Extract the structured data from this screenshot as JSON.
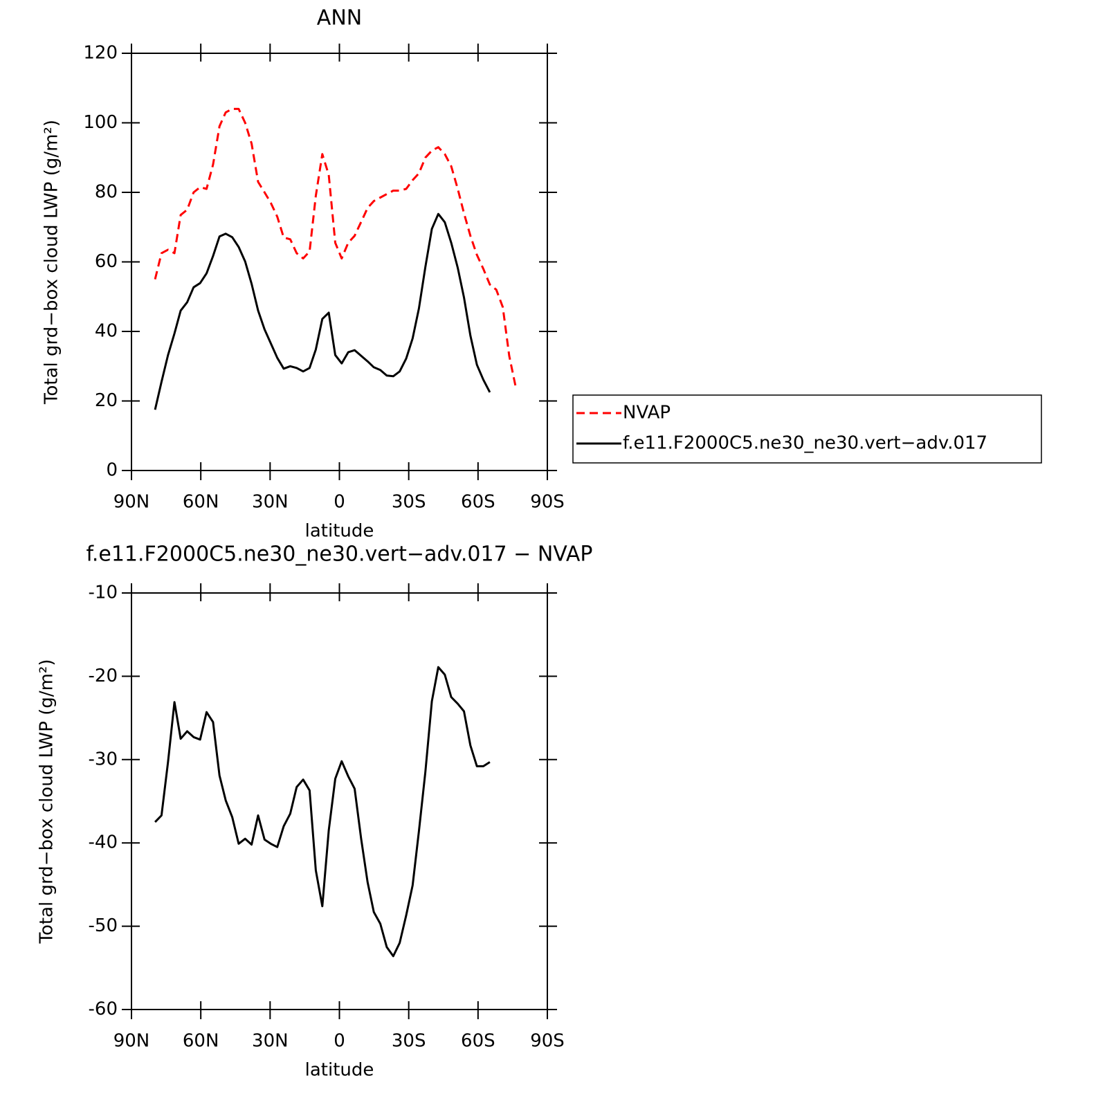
{
  "chart_data": [
    {
      "type": "line",
      "title": "ANN",
      "xlabel": "latitude",
      "ylabel": "Total grd−box cloud LWP (g/m²)",
      "x": [
        79.8,
        77.0,
        74.2,
        71.4,
        68.7,
        65.9,
        63.1,
        60.3,
        57.5,
        54.7,
        51.9,
        49.2,
        46.4,
        43.6,
        40.8,
        38.0,
        35.2,
        32.4,
        29.7,
        26.9,
        24.1,
        21.3,
        18.5,
        15.7,
        12.9,
        10.2,
        7.4,
        4.6,
        1.8,
        -1.0,
        -3.8,
        -6.6,
        -9.4,
        -12.2,
        -14.9,
        -17.7,
        -20.5,
        -23.3,
        -26.1,
        -28.9,
        -31.7,
        -34.4,
        -37.2,
        -40.0,
        -42.8,
        -45.6,
        -48.4,
        -51.2,
        -53.9,
        -56.7,
        -59.5,
        -62.3,
        -65.1,
        -67.9,
        -70.7,
        -73.5,
        -76.3
      ],
      "series": [
        {
          "name": "NVAP",
          "color": "#ff0000",
          "linestyle": "dashed",
          "values": [
            55,
            62.5,
            63.5,
            62.5,
            73.5,
            75,
            80,
            81.5,
            81,
            88,
            99,
            103,
            104,
            104,
            100,
            94,
            83,
            80,
            77,
            73,
            67,
            66.5,
            62.5,
            61,
            63,
            79,
            91,
            85,
            65.5,
            61,
            65.5,
            67.5,
            71.5,
            75.5,
            77.5,
            78.5,
            79.5,
            80.5,
            80.5,
            81,
            83.5,
            85.5,
            90,
            92,
            93,
            91,
            87.5,
            81,
            74,
            67.5,
            62,
            58,
            53.5,
            52,
            47,
            33,
            24
          ]
        },
        {
          "name": "f.e11.F2000C5.ne30_ne30.vert−adv.017",
          "color": "#000000",
          "linestyle": "solid",
          "values": [
            17.5,
            25.5,
            33.2,
            39.4,
            46.0,
            48.4,
            52.7,
            53.9,
            56.7,
            61.7,
            67.3,
            68.1,
            67.1,
            64.3,
            60.1,
            53.7,
            46.0,
            40.6,
            36.6,
            32.4,
            29.3,
            30.0,
            29.5,
            28.5,
            29.5,
            34.8,
            43.6,
            45.4,
            33.2,
            30.8,
            34.0,
            34.6,
            33.0,
            31.4,
            29.7,
            28.9,
            27.3,
            27.1,
            28.5,
            32.2,
            38.0,
            46.6,
            58.5,
            69.5,
            73.8,
            71.4,
            65.5,
            58.3,
            49.8,
            38.8,
            30.4,
            26.1,
            22.5,
            null,
            null,
            null,
            null
          ]
        }
      ],
      "xlim": [
        90,
        -90
      ],
      "xticks": [
        {
          "value": 90,
          "label": "90N"
        },
        {
          "value": 60,
          "label": "60N"
        },
        {
          "value": 30,
          "label": "30N"
        },
        0,
        {
          "value": -30,
          "label": "30S"
        },
        {
          "value": -60,
          "label": "60S"
        },
        {
          "value": -90,
          "label": "90S"
        }
      ],
      "ylim": [
        0,
        120
      ],
      "yticks": [
        0,
        20,
        40,
        60,
        80,
        100,
        120
      ],
      "legend": "right"
    },
    {
      "type": "line",
      "title": "f.e11.F2000C5.ne30_ne30.vert−adv.017 − NVAP",
      "xlabel": "latitude",
      "ylabel": "Total grd−box cloud LWP (g/m²)",
      "x": [
        79.8,
        77.0,
        74.2,
        71.4,
        68.7,
        65.9,
        63.1,
        60.3,
        57.5,
        54.7,
        51.9,
        49.2,
        46.4,
        43.6,
        40.8,
        38.0,
        35.2,
        32.4,
        29.7,
        26.9,
        24.1,
        21.3,
        18.5,
        15.7,
        12.9,
        10.2,
        7.4,
        4.6,
        1.8,
        -1.0,
        -3.8,
        -6.6,
        -9.4,
        -12.2,
        -14.9,
        -17.7,
        -20.5,
        -23.3,
        -26.1,
        -28.9,
        -31.7,
        -34.4,
        -37.2,
        -40.0,
        -42.8,
        -45.6,
        -48.4,
        -51.2,
        -53.9,
        -56.7,
        -59.5,
        -62.3,
        -65.1
      ],
      "values": [
        -37.5,
        -36.7,
        -30.3,
        -23.1,
        -27.5,
        -26.6,
        -27.3,
        -27.6,
        -24.3,
        -25.5,
        -31.9,
        -34.9,
        -36.9,
        -40.1,
        -39.5,
        -40.2,
        -36.7,
        -39.6,
        -40.1,
        -40.5,
        -38.0,
        -36.5,
        -33.3,
        -32.4,
        -33.7,
        -43.3,
        -47.6,
        -38.5,
        -32.3,
        -30.2,
        -32.0,
        -33.5,
        -39.5,
        -44.7,
        -48.3,
        -49.7,
        -52.5,
        -53.6,
        -52.0,
        -48.7,
        -45.1,
        -38.6,
        -31.5,
        -23.0,
        -18.9,
        -19.8,
        -22.5,
        -23.3,
        -24.2,
        -28.3,
        -30.8,
        -30.8,
        -30.3
      ],
      "color": "#000000",
      "xlim": [
        90,
        -90
      ],
      "xticks": [
        {
          "value": 90,
          "label": "90N"
        },
        {
          "value": 60,
          "label": "60N"
        },
        {
          "value": 30,
          "label": "30N"
        },
        0,
        {
          "value": -30,
          "label": "30S"
        },
        {
          "value": -60,
          "label": "60S"
        },
        {
          "value": -90,
          "label": "90S"
        }
      ],
      "ylim": [
        -60,
        -10
      ],
      "yticks": [
        -60,
        -50,
        -40,
        -30,
        -20,
        -10
      ]
    }
  ]
}
